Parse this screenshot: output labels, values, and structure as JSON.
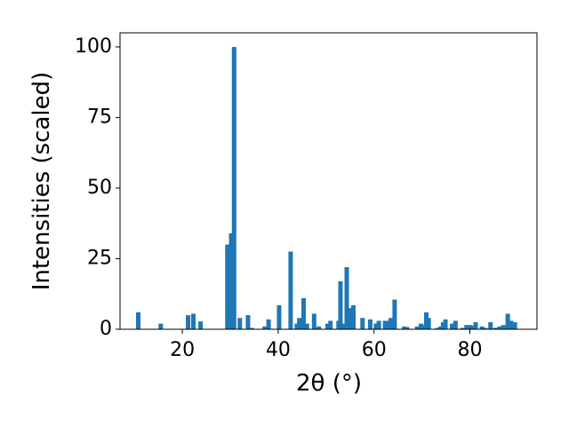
{
  "chart_data": {
    "type": "bar",
    "xlabel": "2θ (°)",
    "ylabel": "Intensities (scaled)",
    "x": [
      10.8,
      15.5,
      21.2,
      22.3,
      23.8,
      29.4,
      30.2,
      30.8,
      32.0,
      33.7,
      34.5,
      37.2,
      38.0,
      40.2,
      42.6,
      43.9,
      44.4,
      45.3,
      46.0,
      47.5,
      48.5,
      50.3,
      50.9,
      52.6,
      53.0,
      53.5,
      54.3,
      55.0,
      55.7,
      57.6,
      59.2,
      60.4,
      61.0,
      62.3,
      62.9,
      63.5,
      64.3,
      66.3,
      66.9,
      69.0,
      69.8,
      70.3,
      70.9,
      71.4,
      73.2,
      73.9,
      74.4,
      74.9,
      76.3,
      77.0,
      78.5,
      79.3,
      80.0,
      80.6,
      81.2,
      82.5,
      83.2,
      84.3,
      85.3,
      86.2,
      87.0,
      87.9,
      88.6,
      89.4
    ],
    "values": [
      6,
      2,
      5,
      5.5,
      2.8,
      30,
      34,
      100,
      4,
      5,
      0.5,
      1,
      3.5,
      8.5,
      27.5,
      2,
      4,
      11,
      2,
      5.5,
      1,
      2,
      3,
      3,
      17,
      2,
      22,
      7.5,
      8.5,
      4,
      3.5,
      2,
      3,
      3,
      3,
      4,
      10.5,
      1,
      0.8,
      1,
      2,
      1.5,
      6,
      4,
      0.5,
      1,
      2.5,
      3.5,
      2,
      3,
      0.5,
      1.5,
      1.5,
      1.3,
      2.5,
      1,
      0.5,
      2.5,
      0.5,
      1,
      1.5,
      5.5,
      3,
      2.5
    ],
    "color": "#1f77b4",
    "xlim": [
      7,
      94
    ],
    "ylim": [
      0,
      105
    ],
    "xticks": [
      20,
      40,
      60,
      80
    ],
    "yticks": [
      0,
      25,
      50,
      75,
      100
    ]
  }
}
